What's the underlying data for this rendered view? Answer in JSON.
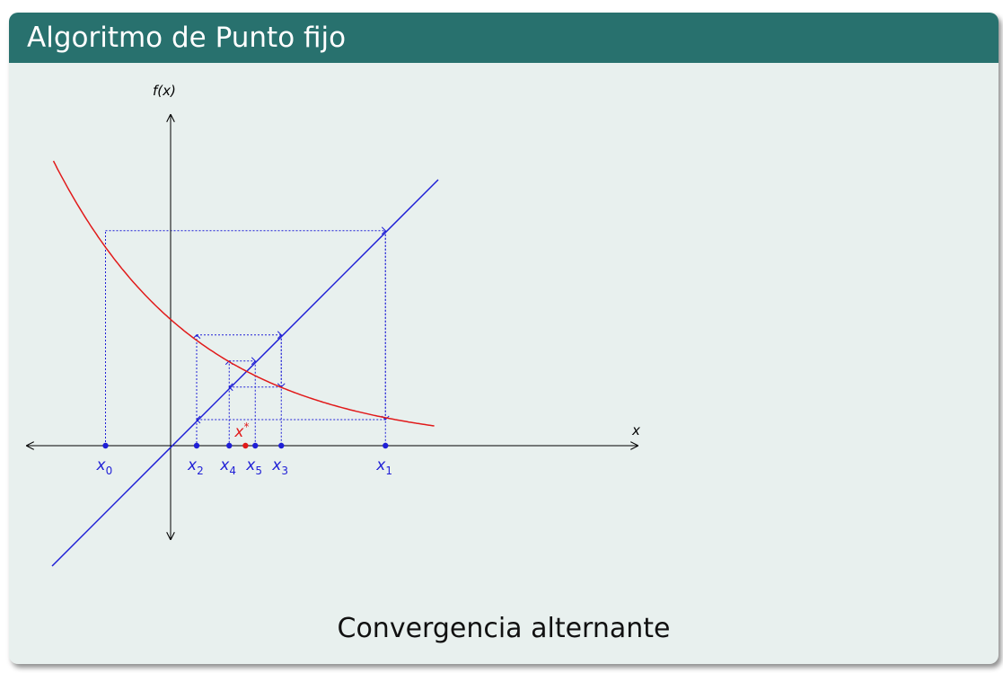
{
  "slide": {
    "title": "Algoritmo de Punto fijo",
    "caption": "Convergencia alternante"
  },
  "colors": {
    "header": "#28716e",
    "background": "#e8f0ee",
    "curve": "#e11a1a",
    "line": "#1f1fd6",
    "iterates": "#1f1fd6",
    "fixed_point": "#e11a1a"
  },
  "diagram": {
    "axis_labels": {
      "x": "x",
      "y": "f(x)"
    },
    "iterates": [
      {
        "base": "x",
        "sub": "0",
        "value": -1.0
      },
      {
        "base": "x",
        "sub": "1",
        "value": 3.3
      },
      {
        "base": "x",
        "sub": "2",
        "value": 0.4
      },
      {
        "base": "x",
        "sub": "3",
        "value": 1.7
      },
      {
        "base": "x",
        "sub": "4",
        "value": 0.9
      },
      {
        "base": "x",
        "sub": "5",
        "value": 1.3
      }
    ],
    "fixed_point": {
      "base": "x",
      "sup": "*",
      "value": 1.15
    }
  }
}
